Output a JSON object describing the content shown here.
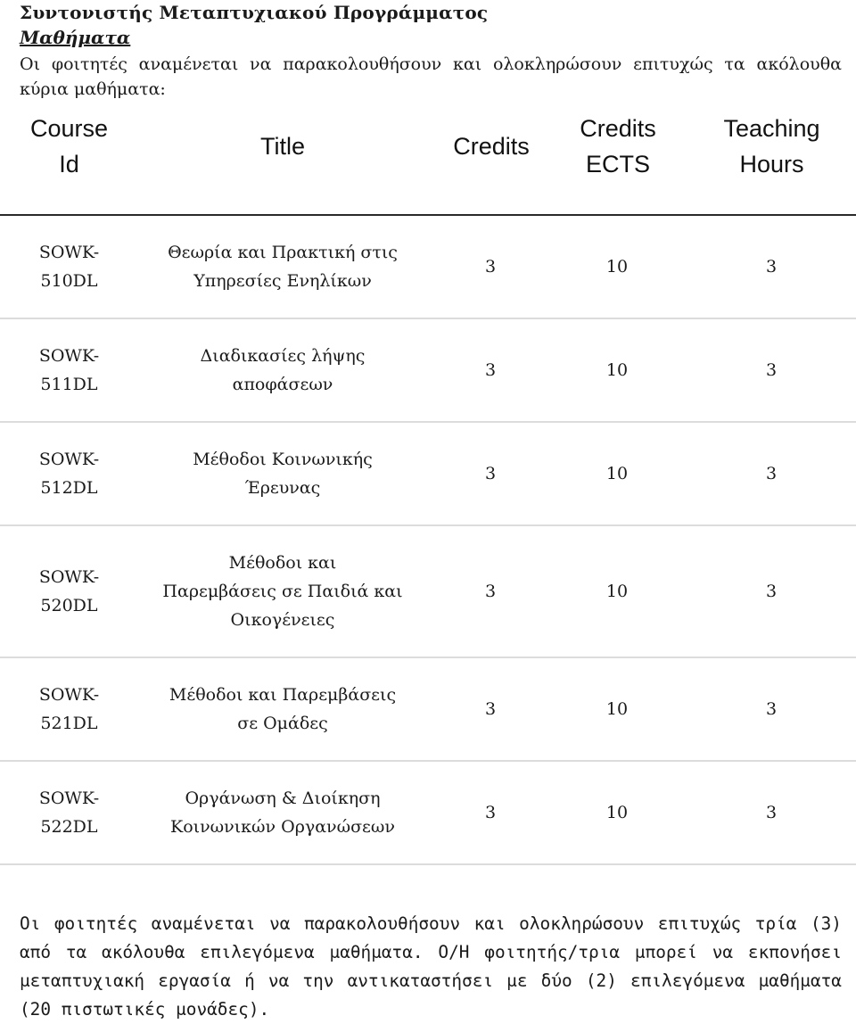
{
  "heading": "Συντονιστής Μεταπτυχιακού Προγράμματος",
  "subheading": "Μαθήματα",
  "intro": "Οι φοιτητές αναμένεται να παρακολουθήσουν και ολοκληρώσουν επιτυχώς τα ακόλουθα κύρια μαθήματα:",
  "table": {
    "headers": {
      "course_id": [
        "Course",
        "Id"
      ],
      "title": [
        "Title"
      ],
      "credits": [
        "Credits"
      ],
      "credits_ects": [
        "Credits",
        "ECTS"
      ],
      "teaching_hours": [
        "Teaching",
        "Hours"
      ]
    },
    "rows": [
      {
        "id": [
          "SOWK-",
          "510DL"
        ],
        "title": [
          "Θεωρία και Πρακτική στις",
          "Υπηρεσίες Ενηλίκων"
        ],
        "credits": "3",
        "ects": "10",
        "hours": "3"
      },
      {
        "id": [
          "SOWK-",
          "511DL"
        ],
        "title": [
          "Διαδικασίες λήψης",
          "αποφάσεων"
        ],
        "credits": "3",
        "ects": "10",
        "hours": "3"
      },
      {
        "id": [
          "SOWK-",
          "512DL"
        ],
        "title": [
          "Μέθοδοι Κοινωνικής",
          "Έρευνας"
        ],
        "credits": "3",
        "ects": "10",
        "hours": "3"
      },
      {
        "id": [
          "SOWK-",
          "520DL"
        ],
        "title": [
          "Μέθοδοι και",
          "Παρεμβάσεις σε Παιδιά και",
          "Οικογένειες"
        ],
        "credits": "3",
        "ects": "10",
        "hours": "3"
      },
      {
        "id": [
          "SOWK-",
          "521DL"
        ],
        "title": [
          "Μέθοδοι και Παρεμβάσεις",
          "σε Ομάδες"
        ],
        "credits": "3",
        "ects": "10",
        "hours": "3"
      },
      {
        "id": [
          "SOWK-",
          "522DL"
        ],
        "title": [
          "Οργάνωση & Διοίκηση",
          "Κοινωνικών Οργανώσεων"
        ],
        "credits": "3",
        "ects": "10",
        "hours": "3"
      }
    ]
  },
  "footer": "Οι φοιτητές αναμένεται να παρακολουθήσουν και ολοκληρώσουν επιτυχώς τρία (3) από τα ακόλουθα επιλεγόμενα μαθήματα. Ο/Η φοιτητής/τρια μπορεί να εκπονήσει μεταπτυχιακή εργασία ή να την αντικαταστήσει με δύο (2) επιλεγόμενα μαθήματα (20 πιστωτικές μονάδες)."
}
